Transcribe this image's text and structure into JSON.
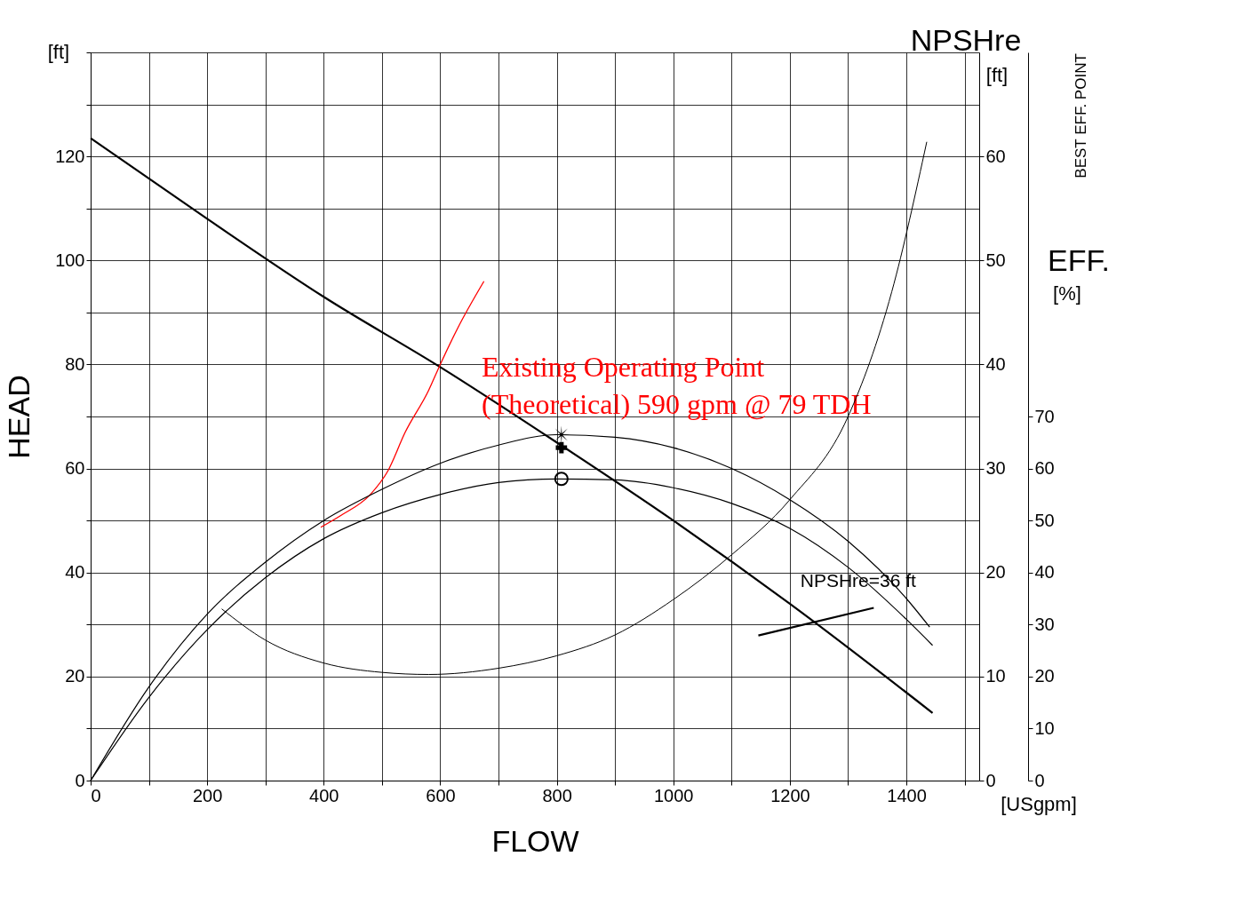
{
  "chart_data": {
    "type": "line",
    "xlabel": "FLOW",
    "ylabel": "HEAD",
    "y2label": "NPSHre",
    "y3label": "EFF.",
    "xlim": [
      0,
      1525
    ],
    "xticks": [
      0,
      {
        "value": 100,
        "label": null
      },
      200,
      {
        "value": 300,
        "label": null
      },
      400,
      {
        "value": 500,
        "label": null
      },
      600,
      {
        "value": 700,
        "label": null
      },
      800,
      {
        "value": 900,
        "label": null
      },
      1000,
      {
        "value": 1100,
        "label": null
      },
      1200,
      {
        "value": 1300,
        "label": null
      },
      1400,
      {
        "value": 1500,
        "label": null
      }
    ],
    "ylim": [
      0,
      140
    ],
    "yticks": [
      0,
      {
        "value": 10,
        "label": null
      },
      20,
      {
        "value": 30,
        "label": null
      },
      40,
      {
        "value": 50,
        "label": null
      },
      60,
      {
        "value": 70,
        "label": null
      },
      80,
      {
        "value": 90,
        "label": null
      },
      100,
      {
        "value": 110,
        "label": null
      },
      120,
      {
        "value": 130,
        "label": null
      },
      {
        "value": 140,
        "label": null
      }
    ],
    "y2lim": [
      0,
      70
    ],
    "y2ticks": [
      0,
      10,
      20,
      30,
      40,
      50,
      60
    ],
    "y3lim": [
      0,
      140
    ],
    "y3ticks": [
      0,
      10,
      20,
      30,
      40,
      50,
      60,
      70
    ],
    "grid": true,
    "series": [
      {
        "color": "#000000",
        "axis": "y",
        "x": [
          0,
          200,
          400,
          600,
          800,
          1000,
          1200,
          1445
        ],
        "values": [
          123.5,
          108,
          93,
          79.5,
          65,
          50,
          34,
          13
        ]
      },
      {
        "color": "#000000",
        "axis": "y3",
        "x": [
          0,
          100,
          200,
          300,
          400,
          500,
          600,
          700,
          800,
          900,
          1000,
          1100,
          1200,
          1300,
          1400,
          1440
        ],
        "values": [
          0,
          18,
          32,
          42,
          50,
          56,
          61,
          64.5,
          66.5,
          66,
          64,
          60,
          54,
          46,
          35,
          29.5
        ]
      },
      {
        "color": "#000000",
        "axis": "y3",
        "x": [
          0,
          100,
          200,
          300,
          400,
          500,
          600,
          700,
          800,
          900,
          1000,
          1100,
          1200,
          1300,
          1400,
          1445
        ],
        "values": [
          0,
          16,
          29,
          39,
          46.5,
          51.5,
          55,
          57.3,
          58,
          57.8,
          56.3,
          53.3,
          48.5,
          41,
          31,
          26
        ]
      },
      {
        "color": "#000000",
        "axis": "y2",
        "x": [
          225,
          300,
          400,
          500,
          580,
          700,
          800,
          900,
          1000,
          1100,
          1200,
          1300,
          1375,
          1435
        ],
        "values": [
          16.5,
          13.5,
          11.3,
          10.4,
          10.2,
          10.8,
          12,
          14,
          17.4,
          21.7,
          27,
          35,
          47,
          61.4
        ]
      },
      {
        "color": "#ff0000",
        "axis": "y",
        "x": [
          395,
          430,
          480,
          510,
          540,
          580,
          600,
          630,
          675
        ],
        "values": [
          48.7,
          51,
          55,
          59.5,
          67,
          75,
          80,
          87,
          96
        ]
      },
      {
        "color": "#000000",
        "axis": "y",
        "x": [
          1146,
          1344
        ],
        "values": [
          27.9,
          33.2
        ]
      },
      {
        "type": "scatter",
        "marker": "star",
        "color": "#000000",
        "axis": "y3",
        "x": [
          808
        ],
        "values": [
          66.5
        ]
      },
      {
        "type": "scatter",
        "marker": "circle",
        "color": "#000000",
        "axis": "y3",
        "x": [
          808
        ],
        "values": [
          58
        ]
      },
      {
        "type": "scatter",
        "marker": "cross",
        "color": "#000000",
        "axis": "y",
        "x": [
          808
        ],
        "values": [
          64
        ]
      }
    ],
    "annotations": [
      "[ft]",
      "[ft]",
      "[%]",
      "BEST EFF. POINT",
      "[USgpm]",
      "Existing Operating Point\n(Theoretical) 590 gpm @ 79 TDH",
      "NPSHre=36 ft"
    ]
  }
}
